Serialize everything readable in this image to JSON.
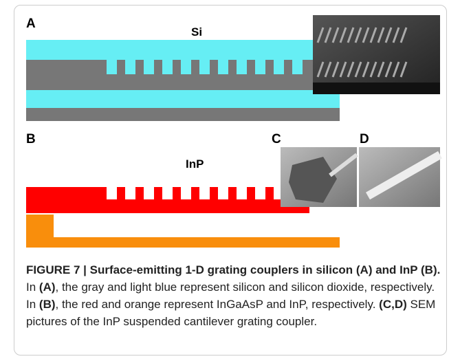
{
  "figure": {
    "panels": {
      "a": {
        "label": "A",
        "material": "Si"
      },
      "b": {
        "label": "B",
        "material": "InP"
      },
      "c": {
        "label": "C"
      },
      "d": {
        "label": "D"
      }
    },
    "caption": {
      "title": "FIGURE 7 | Surface-emitting 1-D grating couplers in silicon (A) and InP (B).",
      "body": [
        " In ",
        "(A)",
        ", the gray and light blue represent silicon and silicon dioxide, respectively. In ",
        "(B)",
        ", the red and orange represent InGaAsP and InP, respectively. ",
        "(C,D)",
        " SEM pictures of the InP suspended cantilever grating coupler."
      ]
    }
  }
}
